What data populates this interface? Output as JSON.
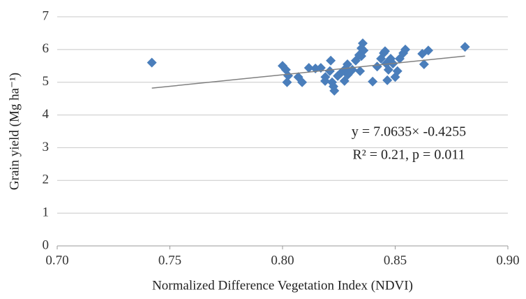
{
  "chart_data": {
    "type": "scatter",
    "xlabel": "Normalized Difference Vegetation Index (NDVI)",
    "ylabel": "Grain yield (Mg ha⁻¹)",
    "annotations": [
      "y = 7.0635× -0.4255",
      "R² = 0.21, p = 0.011"
    ],
    "color": "#4a7ebb",
    "grid": true,
    "xlim": [
      0.7,
      0.9
    ],
    "ylim": [
      0,
      7
    ],
    "xticks": [
      {
        "value": 0.7,
        "label": "0.70"
      },
      {
        "value": 0.75,
        "label": "0.75"
      },
      {
        "value": 0.8,
        "label": "0.80"
      },
      {
        "value": 0.85,
        "label": "0.85"
      },
      {
        "value": 0.9,
        "label": "0.90"
      }
    ],
    "yticks": [
      0,
      1,
      2,
      3,
      4,
      5,
      6,
      7
    ],
    "x": [
      0.742,
      0.8,
      0.8015,
      0.802,
      0.8025,
      0.807,
      0.8087,
      0.8117,
      0.8146,
      0.817,
      0.819,
      0.8189,
      0.821,
      0.8214,
      0.822,
      0.8226,
      0.823,
      0.8245,
      0.826,
      0.8275,
      0.828,
      0.829,
      0.831,
      0.8288,
      0.8325,
      0.8344,
      0.834,
      0.8356,
      0.835,
      0.836,
      0.835,
      0.84,
      0.842,
      0.8437,
      0.8449,
      0.8455,
      0.846,
      0.8465,
      0.847,
      0.848,
      0.849,
      0.85,
      0.851,
      0.852,
      0.8536,
      0.8545,
      0.862,
      0.8628,
      0.8647,
      0.881
    ],
    "values": [
      5.6,
      5.5,
      5.38,
      5.0,
      5.2,
      5.16,
      5.0,
      5.44,
      5.42,
      5.44,
      5.16,
      5.04,
      5.34,
      5.66,
      5.0,
      4.87,
      4.74,
      5.19,
      5.29,
      5.04,
      5.42,
      5.23,
      5.38,
      5.55,
      5.66,
      5.34,
      5.83,
      6.19,
      6.04,
      5.97,
      5.8,
      5.02,
      5.48,
      5.72,
      5.89,
      5.95,
      5.57,
      5.06,
      5.38,
      5.72,
      5.57,
      5.16,
      5.34,
      5.72,
      5.89,
      6.0,
      5.87,
      5.55,
      5.97,
      6.08
    ],
    "trendline": {
      "x": [
        0.742,
        0.881
      ],
      "values": [
        4.82,
        5.8
      ],
      "color": "#808080"
    }
  }
}
